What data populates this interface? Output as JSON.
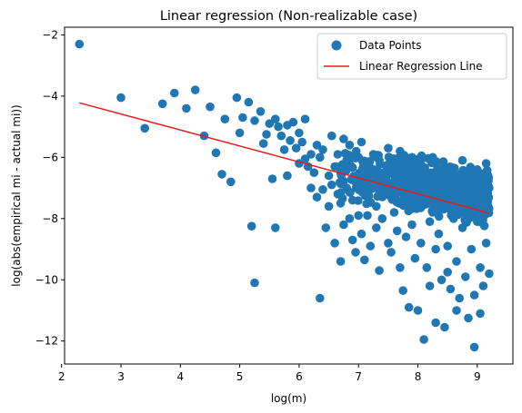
{
  "chart_data": {
    "type": "scatter",
    "title": "Linear regression (Non-realizable case)",
    "xlabel": "log(m)",
    "ylabel": "log(abs(empirical mi - actual mi))",
    "xlim": [
      2.05,
      9.6
    ],
    "ylim": [
      -12.75,
      -1.75
    ],
    "xticks": [
      2,
      3,
      4,
      5,
      6,
      7,
      8,
      9
    ],
    "yticks": [
      -12,
      -10,
      -8,
      -6,
      -4,
      -2
    ],
    "grid": false,
    "legend_position": "top-right",
    "series": [
      {
        "name": "Data Points",
        "kind": "scatter",
        "color": "#1f77b4",
        "points": [
          [
            2.3,
            -2.3
          ],
          [
            3.0,
            -4.05
          ],
          [
            3.4,
            -5.05
          ],
          [
            3.7,
            -4.25
          ],
          [
            3.9,
            -3.9
          ],
          [
            4.1,
            -4.4
          ],
          [
            4.25,
            -3.8
          ],
          [
            4.4,
            -5.3
          ],
          [
            4.5,
            -4.35
          ],
          [
            4.6,
            -5.85
          ],
          [
            4.7,
            -6.55
          ],
          [
            4.75,
            -4.75
          ],
          [
            4.85,
            -6.8
          ],
          [
            4.95,
            -4.05
          ],
          [
            5.05,
            -4.7
          ],
          [
            5.0,
            -5.2
          ],
          [
            5.15,
            -4.2
          ],
          [
            5.2,
            -8.25
          ],
          [
            5.25,
            -10.1
          ],
          [
            5.25,
            -4.8
          ],
          [
            5.35,
            -4.5
          ],
          [
            5.4,
            -5.55
          ],
          [
            5.45,
            -5.25
          ],
          [
            5.5,
            -4.9
          ],
          [
            5.55,
            -6.7
          ],
          [
            5.6,
            -8.3
          ],
          [
            5.6,
            -4.75
          ],
          [
            5.65,
            -5.0
          ],
          [
            5.7,
            -5.3
          ],
          [
            5.75,
            -5.75
          ],
          [
            5.8,
            -4.95
          ],
          [
            5.8,
            -6.6
          ],
          [
            5.85,
            -5.45
          ],
          [
            5.9,
            -4.85
          ],
          [
            5.95,
            -5.7
          ],
          [
            6.0,
            -6.2
          ],
          [
            6.0,
            -5.2
          ],
          [
            6.05,
            -5.5
          ],
          [
            6.1,
            -6.05
          ],
          [
            6.1,
            -4.75
          ],
          [
            6.15,
            -6.3
          ],
          [
            6.2,
            -5.9
          ],
          [
            6.2,
            -7.0
          ],
          [
            6.25,
            -6.5
          ],
          [
            6.3,
            -5.6
          ],
          [
            6.3,
            -7.3
          ],
          [
            6.35,
            -6.0
          ],
          [
            6.35,
            -10.6
          ],
          [
            6.4,
            -7.05
          ],
          [
            6.4,
            -5.75
          ],
          [
            6.45,
            -8.3
          ],
          [
            6.5,
            -7.6
          ],
          [
            6.5,
            -6.6
          ],
          [
            6.55,
            -5.3
          ],
          [
            6.55,
            -6.9
          ],
          [
            6.6,
            -8.8
          ],
          [
            6.6,
            -6.3
          ],
          [
            6.65,
            -7.2
          ],
          [
            6.65,
            -5.9
          ],
          [
            6.7,
            -9.4
          ],
          [
            6.7,
            -7.5
          ],
          [
            6.7,
            -6.5
          ],
          [
            6.75,
            -5.4
          ],
          [
            6.75,
            -8.2
          ],
          [
            6.8,
            -7.0
          ],
          [
            6.8,
            -6.1
          ],
          [
            6.85,
            -8.0
          ],
          [
            6.85,
            -5.6
          ],
          [
            6.9,
            -7.4
          ],
          [
            6.9,
            -8.7
          ],
          [
            6.95,
            -6.8
          ],
          [
            6.95,
            -9.1
          ],
          [
            7.0,
            -6.0
          ],
          [
            7.0,
            -7.9
          ],
          [
            7.05,
            -8.5
          ],
          [
            7.05,
            -5.5
          ],
          [
            7.1,
            -7.2
          ],
          [
            7.1,
            -9.35
          ],
          [
            7.15,
            -6.3
          ],
          [
            7.15,
            -7.9
          ],
          [
            7.2,
            -8.9
          ],
          [
            7.2,
            -6.7
          ],
          [
            7.25,
            -5.9
          ],
          [
            7.3,
            -7.6
          ],
          [
            7.3,
            -8.3
          ],
          [
            7.35,
            -6.1
          ],
          [
            7.35,
            -9.7
          ],
          [
            7.4,
            -7.0
          ],
          [
            7.4,
            -8.0
          ],
          [
            7.45,
            -6.5
          ],
          [
            7.5,
            -8.8
          ],
          [
            7.5,
            -5.7
          ],
          [
            7.55,
            -7.3
          ],
          [
            7.55,
            -9.1
          ],
          [
            7.6,
            -6.2
          ],
          [
            7.6,
            -7.8
          ],
          [
            7.65,
            -8.4
          ],
          [
            7.65,
            -6.8
          ],
          [
            7.7,
            -5.8
          ],
          [
            7.7,
            -9.6
          ],
          [
            7.75,
            -7.1
          ],
          [
            7.75,
            -10.35
          ],
          [
            7.8,
            -6.4
          ],
          [
            7.8,
            -8.6
          ],
          [
            7.85,
            -10.9
          ],
          [
            7.85,
            -7.5
          ],
          [
            7.9,
            -6.0
          ],
          [
            7.9,
            -8.2
          ],
          [
            7.95,
            -9.3
          ],
          [
            7.95,
            -6.9
          ],
          [
            8.0,
            -11.0
          ],
          [
            8.0,
            -7.6
          ],
          [
            8.05,
            -6.3
          ],
          [
            8.05,
            -8.8
          ],
          [
            8.1,
            -11.95
          ],
          [
            8.1,
            -7.2
          ],
          [
            8.15,
            -9.6
          ],
          [
            8.15,
            -6.6
          ],
          [
            8.2,
            -8.1
          ],
          [
            8.2,
            -10.2
          ],
          [
            8.25,
            -6.0
          ],
          [
            8.25,
            -7.8
          ],
          [
            8.3,
            -9.0
          ],
          [
            8.3,
            -11.4
          ],
          [
            8.35,
            -6.8
          ],
          [
            8.35,
            -8.5
          ],
          [
            8.4,
            -10.0
          ],
          [
            8.4,
            -7.3
          ],
          [
            8.45,
            -11.55
          ],
          [
            8.45,
            -6.3
          ],
          [
            8.5,
            -8.9
          ],
          [
            8.5,
            -9.75
          ],
          [
            8.55,
            -7.0
          ],
          [
            8.55,
            -10.3
          ],
          [
            8.6,
            -8.0
          ],
          [
            8.6,
            -6.5
          ],
          [
            8.65,
            -9.4
          ],
          [
            8.65,
            -11.0
          ],
          [
            8.7,
            -7.4
          ],
          [
            8.7,
            -10.6
          ],
          [
            8.75,
            -8.3
          ],
          [
            8.75,
            -6.1
          ],
          [
            8.8,
            -9.9
          ],
          [
            8.8,
            -7.8
          ],
          [
            8.85,
            -11.25
          ],
          [
            8.85,
            -6.8
          ],
          [
            8.9,
            -9.0
          ],
          [
            8.9,
            -7.2
          ],
          [
            8.95,
            -12.2
          ],
          [
            8.95,
            -10.5
          ],
          [
            9.0,
            -8.1
          ],
          [
            9.0,
            -6.4
          ],
          [
            9.05,
            -9.6
          ],
          [
            9.05,
            -11.1
          ],
          [
            9.1,
            -7.5
          ],
          [
            9.1,
            -10.2
          ],
          [
            9.15,
            -8.8
          ],
          [
            9.15,
            -6.2
          ],
          [
            9.2,
            -9.8
          ],
          [
            9.2,
            -7.0
          ]
        ],
        "dense_cloud": {
          "x_range": [
            6.6,
            9.2
          ],
          "y_range": [
            -9.8,
            -5.8
          ],
          "y_center_at_x_min": -6.5,
          "y_center_at_x_max": -7.3,
          "count": 900
        }
      },
      {
        "name": "Linear Regression Line",
        "kind": "line",
        "color": "#e8191c",
        "points": [
          [
            2.3,
            -4.22
          ],
          [
            9.2,
            -7.82
          ]
        ]
      }
    ]
  }
}
